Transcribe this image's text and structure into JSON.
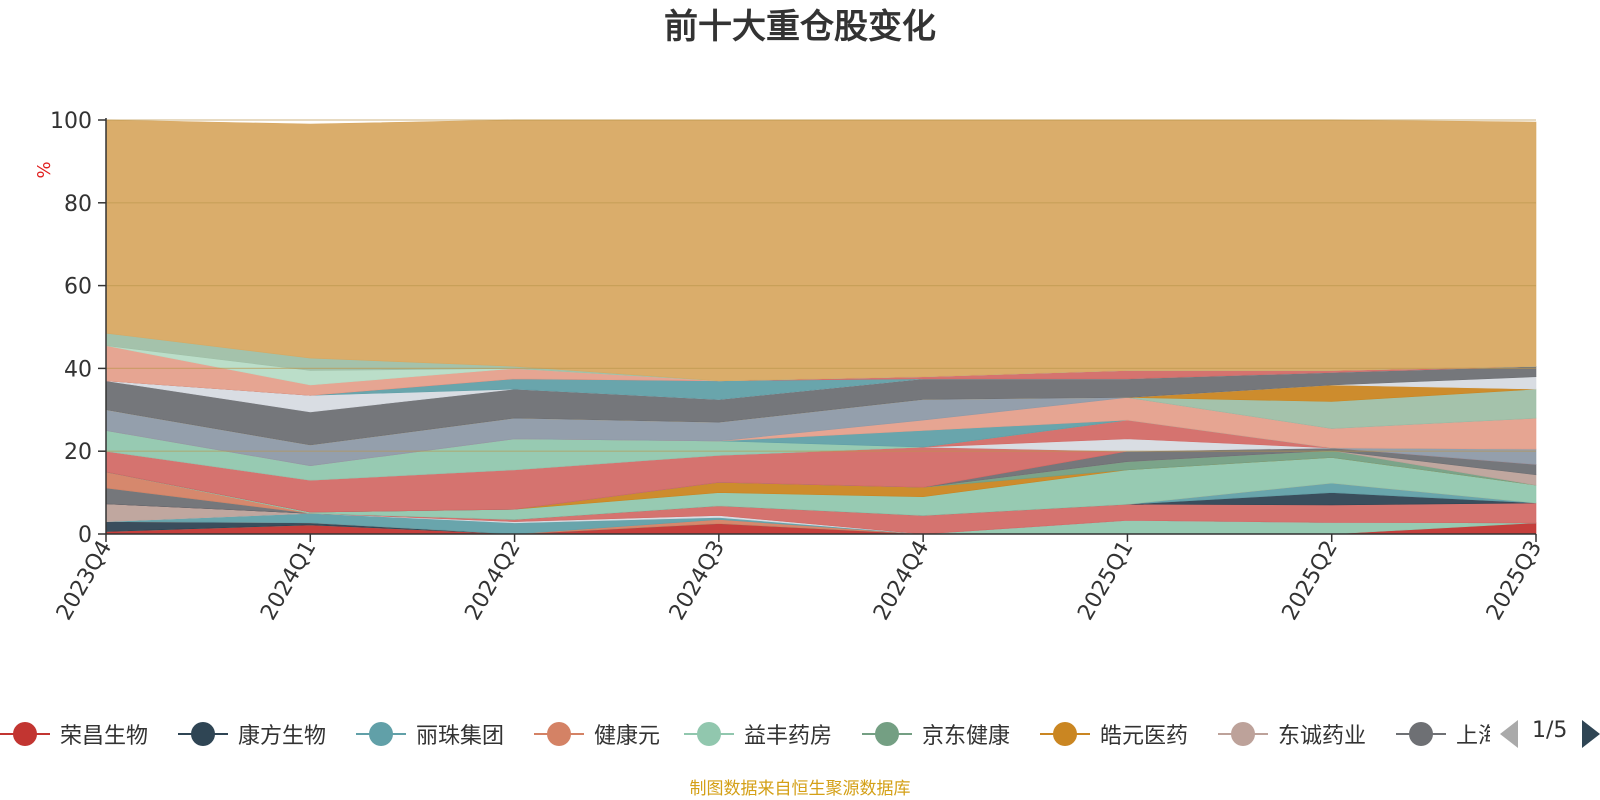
{
  "chart_data": {
    "type": "area",
    "title": "前十大重仓股变化",
    "ylabel": "%",
    "ylim": [
      0,
      100
    ],
    "yticks": [
      0,
      20,
      40,
      60,
      80,
      100
    ],
    "grid": true,
    "stacked": true,
    "categories": [
      "2023Q4",
      "2024Q1",
      "2024Q2",
      "2024Q3",
      "2024Q4",
      "2025Q1",
      "2025Q2",
      "2025Q3"
    ],
    "series": [
      {
        "name": "荣昌生物",
        "color": "#c23531",
        "values": [
          0.6,
          2.2,
          0.0,
          2.5,
          0.0,
          0.0,
          0.0,
          2.7
        ]
      },
      {
        "name": "康方生物",
        "color": "#2f4554",
        "values": [
          2.4,
          0.5,
          0.0,
          0.0,
          0.0,
          0.0,
          0.0,
          0.0
        ]
      },
      {
        "name": "丽珠集团",
        "color": "#61a0a8",
        "values": [
          0.0,
          2.3,
          0.0,
          0.0,
          0.0,
          0.0,
          0.0,
          0.0
        ]
      },
      {
        "name": "健康元",
        "color": "#d48265",
        "values": [
          0.0,
          0.0,
          0.0,
          1.0,
          0.0,
          0.0,
          0.0,
          0.0
        ]
      },
      {
        "name": "益丰药房",
        "color": "#91c7ae",
        "values": [
          0.0,
          0.0,
          0.0,
          0.0,
          0.0,
          3.3,
          0.0,
          0.0
        ]
      },
      {
        "name": "京东健康",
        "color": "#749f83",
        "values": [
          0.0,
          0.0,
          0.0,
          0.0,
          0.0,
          0.0,
          2.8,
          0.0
        ]
      },
      {
        "name": "皓元医药",
        "color": "#ca8622",
        "values": [
          0.0,
          0.0,
          0.0,
          0.0,
          0.0,
          0.0,
          0.0,
          0.0
        ]
      },
      {
        "name": "东诚药业",
        "color": "#bda29a",
        "values": [
          4.3,
          0.0,
          0.0,
          0.0,
          0.0,
          0.0,
          0.0,
          0.0
        ]
      },
      {
        "name": "上海医药",
        "color": "#6e7074",
        "values": [
          3.8,
          0.0,
          0.0,
          0.0,
          0.0,
          0.0,
          0.0,
          0.0
        ]
      }
    ],
    "legend_placement": "bottom",
    "legend_page": "1/5",
    "source_note": "制图数据来自恒生聚源数据库",
    "bands": [
      {
        "color": "#c23531",
        "lower": [
          0,
          0,
          0,
          0,
          0,
          0,
          0,
          0
        ],
        "upper": [
          0.6,
          2.2,
          0.0,
          2.5,
          0.0,
          0.0,
          0.0,
          2.7
        ]
      },
      {
        "color": "#91c7ae",
        "lower": [
          0.6,
          2.2,
          0.0,
          2.5,
          0.0,
          0.0,
          0.0,
          2.7
        ],
        "upper": [
          0.6,
          2.2,
          0.0,
          2.5,
          0.0,
          3.3,
          2.8,
          2.7
        ]
      },
      {
        "color": "#2f4554",
        "lower": [
          0.6,
          2.2,
          0.0,
          2.5,
          0.0,
          3.3,
          2.8,
          2.7
        ],
        "upper": [
          3.0,
          2.7,
          0.0,
          2.5,
          0.0,
          3.3,
          2.8,
          2.7
        ]
      },
      {
        "color": "#d48265",
        "lower": [
          3.0,
          2.7,
          0.0,
          2.5,
          0.0,
          3.3,
          2.8,
          2.7
        ],
        "upper": [
          3.0,
          2.7,
          0.0,
          3.5,
          0.0,
          3.3,
          2.8,
          2.7
        ]
      },
      {
        "color": "#61a0a8",
        "lower": [
          3.0,
          2.7,
          0.0,
          3.5,
          0.0,
          3.3,
          2.8,
          2.7
        ],
        "upper": [
          3.0,
          5.0,
          2.7,
          4.0,
          0.0,
          3.3,
          2.8,
          2.7
        ]
      },
      {
        "color": "#d7dbe2",
        "lower": [
          3.0,
          5.0,
          2.7,
          4.0,
          0.0,
          3.3,
          2.8,
          2.7
        ],
        "upper": [
          3.0,
          5.0,
          3.0,
          4.5,
          0.0,
          3.3,
          2.8,
          2.7
        ]
      },
      {
        "color": "#bda29a",
        "lower": [
          3.0,
          5.0,
          3.0,
          4.5,
          0.0,
          3.3,
          2.8,
          2.7
        ],
        "upper": [
          7.3,
          5.0,
          3.0,
          4.5,
          0.0,
          3.3,
          2.8,
          2.7
        ]
      },
      {
        "color": "#d36b67",
        "lower": [
          7.3,
          5.0,
          3.0,
          4.5,
          0.0,
          3.3,
          2.8,
          2.7
        ],
        "upper": [
          7.3,
          5.0,
          3.5,
          6.8,
          4.5,
          7.2,
          7.0,
          7.5
        ]
      },
      {
        "color": "#2f4554",
        "lower": [
          7.3,
          5.0,
          3.5,
          6.8,
          4.5,
          7.2,
          7.0,
          7.5
        ],
        "upper": [
          7.3,
          5.0,
          3.5,
          6.8,
          4.5,
          7.2,
          10.0,
          7.5
        ]
      },
      {
        "color": "#6e7074",
        "lower": [
          7.3,
          5.0,
          3.5,
          6.8,
          4.5,
          7.2,
          10.0,
          7.5
        ],
        "upper": [
          11.1,
          5.0,
          3.5,
          6.8,
          4.5,
          7.2,
          10.0,
          7.5
        ]
      },
      {
        "color": "#61a0a8",
        "lower": [
          11.1,
          5.0,
          3.5,
          6.8,
          4.5,
          7.2,
          10.0,
          7.5
        ],
        "upper": [
          11.1,
          5.0,
          3.5,
          6.8,
          4.5,
          7.2,
          12.3,
          7.5
        ]
      },
      {
        "color": "#d48265",
        "lower": [
          11.1,
          5.0,
          3.5,
          6.8,
          4.5,
          7.2,
          12.3,
          7.5
        ],
        "upper": [
          15.0,
          5.0,
          3.5,
          6.8,
          4.5,
          7.2,
          12.3,
          7.5
        ]
      },
      {
        "color": "#91c7ae",
        "lower": [
          15.0,
          5.0,
          3.5,
          6.8,
          4.5,
          7.2,
          12.3,
          7.5
        ],
        "upper": [
          15.0,
          5.3,
          6.0,
          10.0,
          9.0,
          15.5,
          18.5,
          11.8
        ]
      },
      {
        "color": "#ca8622",
        "lower": [
          15.0,
          5.3,
          6.0,
          10.0,
          9.0,
          15.5,
          18.5,
          11.8
        ],
        "upper": [
          15.0,
          5.3,
          6.0,
          12.5,
          11.3,
          15.5,
          18.5,
          11.8
        ]
      },
      {
        "color": "#749f83",
        "lower": [
          15.0,
          5.3,
          6.0,
          12.5,
          11.3,
          15.5,
          18.5,
          11.8
        ],
        "upper": [
          15.0,
          5.3,
          6.0,
          12.5,
          11.3,
          17.5,
          20.2,
          11.8
        ]
      },
      {
        "color": "#bda29a",
        "lower": [
          15.0,
          5.3,
          6.0,
          12.5,
          11.3,
          17.5,
          20.2,
          11.8
        ],
        "upper": [
          15.0,
          5.3,
          6.0,
          12.5,
          11.3,
          17.5,
          20.2,
          14.3
        ]
      },
      {
        "color": "#6e7074",
        "lower": [
          15.0,
          5.3,
          6.0,
          12.5,
          11.3,
          17.5,
          20.2,
          14.3
        ],
        "upper": [
          15.0,
          5.3,
          6.0,
          12.5,
          11.3,
          20.0,
          20.8,
          16.8
        ]
      },
      {
        "color": "#d36b67",
        "lower": [
          15.0,
          5.3,
          6.0,
          12.5,
          11.3,
          20.0,
          20.8,
          16.8
        ],
        "upper": [
          20.0,
          13.0,
          15.5,
          19.0,
          21.0,
          20.0,
          20.8,
          16.8
        ]
      },
      {
        "color": "#8e9aa8",
        "lower": [
          20.0,
          13.0,
          15.5,
          19.0,
          21.0,
          20.0,
          20.8,
          16.8
        ],
        "upper": [
          20.0,
          13.0,
          15.5,
          19.0,
          21.0,
          20.0,
          20.8,
          20.5
        ]
      },
      {
        "color": "#d7dbe2",
        "lower": [
          20.0,
          13.0,
          15.5,
          19.0,
          21.0,
          20.0,
          20.8,
          20.5
        ],
        "upper": [
          20.0,
          13.0,
          15.5,
          19.0,
          21.0,
          23.0,
          20.8,
          20.5
        ]
      },
      {
        "color": "#d36b67",
        "lower": [
          20.0,
          13.0,
          15.5,
          19.0,
          21.0,
          23.0,
          20.8,
          20.5
        ],
        "upper": [
          20.0,
          13.0,
          15.5,
          19.0,
          21.0,
          27.5,
          20.8,
          20.5
        ]
      },
      {
        "color": "#91c7ae",
        "lower": [
          20.0,
          13.0,
          15.5,
          19.0,
          21.0,
          27.5,
          20.8,
          20.5
        ],
        "upper": [
          25.0,
          16.5,
          23.0,
          22.5,
          21.0,
          27.5,
          20.8,
          20.5
        ]
      },
      {
        "color": "#61a0a8",
        "lower": [
          25.0,
          16.5,
          23.0,
          22.5,
          21.0,
          27.5,
          20.8,
          20.5
        ],
        "upper": [
          25.0,
          16.5,
          23.0,
          22.5,
          25.0,
          27.5,
          20.8,
          20.5
        ]
      },
      {
        "color": "#e5a08c",
        "lower": [
          25.0,
          16.5,
          23.0,
          22.5,
          25.0,
          27.5,
          20.8,
          20.5
        ],
        "upper": [
          25.0,
          16.5,
          23.0,
          22.5,
          27.5,
          33.0,
          25.5,
          28.0
        ]
      },
      {
        "color": "#8e9aa8",
        "lower": [
          25.0,
          16.5,
          23.0,
          22.5,
          27.5,
          33.0,
          25.5,
          28.0
        ],
        "upper": [
          30.0,
          21.5,
          28.0,
          27.0,
          32.5,
          33.0,
          25.5,
          28.0
        ]
      },
      {
        "color": "#9fbfa6",
        "lower": [
          30.0,
          21.5,
          28.0,
          27.0,
          32.5,
          33.0,
          25.5,
          28.0
        ],
        "upper": [
          30.0,
          21.5,
          28.0,
          27.0,
          32.5,
          33.0,
          32.0,
          35.0
        ]
      },
      {
        "color": "#ca8622",
        "lower": [
          30.0,
          21.5,
          28.0,
          27.0,
          32.5,
          33.0,
          32.0,
          35.0
        ],
        "upper": [
          30.0,
          21.5,
          28.0,
          27.0,
          32.5,
          33.0,
          36.0,
          35.0
        ]
      },
      {
        "color": "#d7dbe2",
        "lower": [
          30.0,
          21.5,
          28.0,
          27.0,
          32.5,
          33.0,
          36.0,
          35.0
        ],
        "upper": [
          30.0,
          21.5,
          28.0,
          27.0,
          32.5,
          33.0,
          36.0,
          38.0
        ]
      },
      {
        "color": "#6e7074",
        "lower": [
          30.0,
          21.5,
          28.0,
          27.0,
          32.5,
          33.0,
          36.0,
          38.0
        ],
        "upper": [
          37.0,
          29.5,
          35.0,
          32.5,
          37.5,
          37.5,
          39.0,
          40.5
        ]
      },
      {
        "color": "#d7dbe2",
        "lower": [
          37.0,
          29.5,
          35.0,
          32.5,
          37.5,
          37.5,
          39.0,
          40.5
        ],
        "upper": [
          37.0,
          33.5,
          35.0,
          32.5,
          37.5,
          37.5,
          39.0,
          40.5
        ]
      },
      {
        "color": "#61a0a8",
        "lower": [
          37.0,
          33.5,
          35.0,
          32.5,
          37.5,
          37.5,
          39.0,
          40.5
        ],
        "upper": [
          37.0,
          33.5,
          37.5,
          37.0,
          37.5,
          37.5,
          39.0,
          40.5
        ]
      },
      {
        "color": "#d36b67",
        "lower": [
          37.0,
          33.5,
          37.5,
          37.0,
          37.5,
          37.5,
          39.0,
          40.5
        ],
        "upper": [
          37.0,
          33.5,
          37.5,
          37.0,
          38.0,
          39.5,
          39.5,
          40.5
        ]
      },
      {
        "color": "#e5a08c",
        "lower": [
          37.0,
          33.5,
          37.5,
          37.0,
          38.0,
          39.5,
          39.5,
          40.5
        ],
        "upper": [
          45.5,
          36.0,
          40.0,
          37.0,
          38.0,
          39.5,
          39.5,
          40.5
        ]
      },
      {
        "color": "#b7dcc6",
        "lower": [
          45.5,
          36.0,
          40.0,
          37.0,
          38.0,
          39.5,
          39.5,
          40.5
        ],
        "upper": [
          45.5,
          39.5,
          40.0,
          37.0,
          38.0,
          39.5,
          39.5,
          40.5
        ]
      },
      {
        "color": "#9fbfa6",
        "lower": [
          45.5,
          39.5,
          40.0,
          37.0,
          38.0,
          39.5,
          39.5,
          40.5
        ],
        "upper": [
          48.5,
          42.5,
          40.5,
          37.0,
          38.0,
          39.5,
          39.5,
          40.5
        ]
      },
      {
        "color": "#d8a963",
        "lower": [
          48.5,
          42.5,
          40.5,
          37.0,
          38.0,
          39.5,
          39.5,
          40.5
        ],
        "upper": [
          100.0,
          99.0,
          100.0,
          100.0,
          100.0,
          100.0,
          100.0,
          99.5
        ]
      }
    ]
  }
}
